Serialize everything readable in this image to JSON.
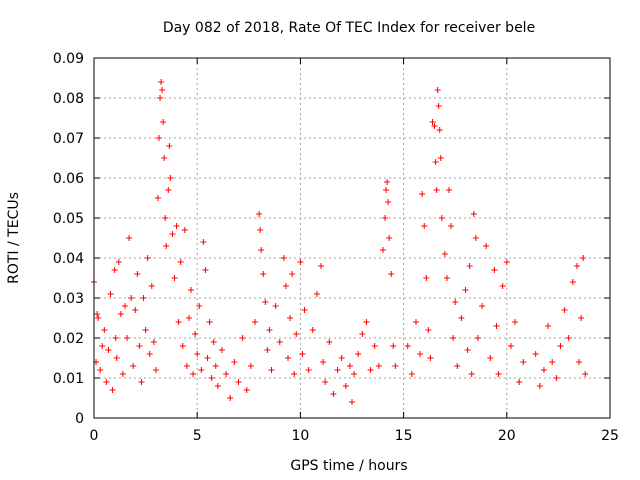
{
  "chart_data": {
    "type": "scatter",
    "title": "Day 082 of 2018, Rate Of TEC Index for receiver bele",
    "xlabel": "GPS time / hours",
    "ylabel": "ROTI / TECUs",
    "xlim": [
      0,
      25
    ],
    "ylim": [
      0,
      0.09
    ],
    "x_ticks": [
      0,
      5,
      10,
      15,
      20,
      25
    ],
    "x_tick_labels": [
      "0",
      "5",
      "10",
      "15",
      "20",
      "25"
    ],
    "y_ticks": [
      0,
      0.01,
      0.02,
      0.03,
      0.04,
      0.05,
      0.06,
      0.07,
      0.08,
      0.09
    ],
    "y_tick_labels": [
      "0",
      "0.01",
      "0.02",
      "0.03",
      "0.04",
      "0.05",
      "0.06",
      "0.07",
      "0.08",
      "0.09"
    ],
    "grid": true,
    "marker": "+",
    "color": "#ff0000",
    "series": [
      {
        "name": "ROTI",
        "points": [
          [
            0.0,
            0.034
          ],
          [
            0.1,
            0.014
          ],
          [
            0.15,
            0.026
          ],
          [
            0.2,
            0.025
          ],
          [
            0.3,
            0.012
          ],
          [
            0.4,
            0.018
          ],
          [
            0.5,
            0.022
          ],
          [
            0.6,
            0.009
          ],
          [
            0.7,
            0.017
          ],
          [
            0.8,
            0.031
          ],
          [
            0.9,
            0.007
          ],
          [
            1.0,
            0.037
          ],
          [
            1.05,
            0.02
          ],
          [
            1.1,
            0.015
          ],
          [
            1.2,
            0.039
          ],
          [
            1.3,
            0.026
          ],
          [
            1.4,
            0.011
          ],
          [
            1.5,
            0.028
          ],
          [
            1.6,
            0.02
          ],
          [
            1.7,
            0.045
          ],
          [
            1.8,
            0.03
          ],
          [
            1.9,
            0.013
          ],
          [
            2.0,
            0.027
          ],
          [
            2.1,
            0.036
          ],
          [
            2.2,
            0.018
          ],
          [
            2.3,
            0.009
          ],
          [
            2.4,
            0.03
          ],
          [
            2.5,
            0.022
          ],
          [
            2.6,
            0.04
          ],
          [
            2.7,
            0.016
          ],
          [
            2.8,
            0.033
          ],
          [
            2.9,
            0.019
          ],
          [
            3.0,
            0.012
          ],
          [
            3.1,
            0.055
          ],
          [
            3.15,
            0.07
          ],
          [
            3.2,
            0.08
          ],
          [
            3.25,
            0.084
          ],
          [
            3.3,
            0.082
          ],
          [
            3.35,
            0.074
          ],
          [
            3.4,
            0.065
          ],
          [
            3.45,
            0.05
          ],
          [
            3.5,
            0.043
          ],
          [
            3.6,
            0.057
          ],
          [
            3.65,
            0.068
          ],
          [
            3.7,
            0.06
          ],
          [
            3.8,
            0.046
          ],
          [
            3.9,
            0.035
          ],
          [
            4.0,
            0.048
          ],
          [
            4.1,
            0.024
          ],
          [
            4.2,
            0.039
          ],
          [
            4.3,
            0.018
          ],
          [
            4.4,
            0.047
          ],
          [
            4.5,
            0.013
          ],
          [
            4.6,
            0.025
          ],
          [
            4.7,
            0.032
          ],
          [
            4.8,
            0.011
          ],
          [
            4.9,
            0.021
          ],
          [
            5.0,
            0.016
          ],
          [
            5.1,
            0.028
          ],
          [
            5.2,
            0.012
          ],
          [
            5.3,
            0.044
          ],
          [
            5.4,
            0.037
          ],
          [
            5.5,
            0.015
          ],
          [
            5.6,
            0.024
          ],
          [
            5.7,
            0.01
          ],
          [
            5.8,
            0.019
          ],
          [
            5.9,
            0.013
          ],
          [
            6.0,
            0.008
          ],
          [
            6.2,
            0.017
          ],
          [
            6.4,
            0.011
          ],
          [
            6.6,
            0.005
          ],
          [
            6.8,
            0.014
          ],
          [
            7.0,
            0.009
          ],
          [
            7.2,
            0.02
          ],
          [
            7.4,
            0.007
          ],
          [
            7.6,
            0.013
          ],
          [
            7.8,
            0.024
          ],
          [
            8.0,
            0.051
          ],
          [
            8.05,
            0.047
          ],
          [
            8.1,
            0.042
          ],
          [
            8.2,
            0.036
          ],
          [
            8.3,
            0.029
          ],
          [
            8.4,
            0.017
          ],
          [
            8.5,
            0.022
          ],
          [
            8.6,
            0.012
          ],
          [
            8.8,
            0.028
          ],
          [
            9.0,
            0.019
          ],
          [
            9.2,
            0.04
          ],
          [
            9.3,
            0.033
          ],
          [
            9.4,
            0.015
          ],
          [
            9.5,
            0.025
          ],
          [
            9.6,
            0.036
          ],
          [
            9.7,
            0.011
          ],
          [
            9.8,
            0.021
          ],
          [
            10.0,
            0.039
          ],
          [
            10.1,
            0.016
          ],
          [
            10.2,
            0.027
          ],
          [
            10.4,
            0.012
          ],
          [
            10.6,
            0.022
          ],
          [
            10.8,
            0.031
          ],
          [
            11.0,
            0.038
          ],
          [
            11.1,
            0.014
          ],
          [
            11.2,
            0.009
          ],
          [
            11.4,
            0.019
          ],
          [
            11.6,
            0.006
          ],
          [
            11.8,
            0.012
          ],
          [
            12.0,
            0.015
          ],
          [
            12.2,
            0.008
          ],
          [
            12.4,
            0.013
          ],
          [
            12.5,
            0.004
          ],
          [
            12.6,
            0.011
          ],
          [
            12.8,
            0.016
          ],
          [
            13.0,
            0.021
          ],
          [
            13.2,
            0.024
          ],
          [
            13.4,
            0.012
          ],
          [
            13.6,
            0.018
          ],
          [
            13.8,
            0.013
          ],
          [
            14.0,
            0.042
          ],
          [
            14.1,
            0.05
          ],
          [
            14.15,
            0.057
          ],
          [
            14.2,
            0.059
          ],
          [
            14.25,
            0.054
          ],
          [
            14.3,
            0.045
          ],
          [
            14.4,
            0.036
          ],
          [
            14.5,
            0.018
          ],
          [
            14.6,
            0.013
          ],
          [
            15.2,
            0.018
          ],
          [
            15.4,
            0.011
          ],
          [
            15.6,
            0.024
          ],
          [
            15.8,
            0.016
          ],
          [
            15.9,
            0.056
          ],
          [
            16.0,
            0.048
          ],
          [
            16.1,
            0.035
          ],
          [
            16.2,
            0.022
          ],
          [
            16.3,
            0.015
          ],
          [
            16.4,
            0.074
          ],
          [
            16.5,
            0.073
          ],
          [
            16.55,
            0.064
          ],
          [
            16.6,
            0.057
          ],
          [
            16.65,
            0.082
          ],
          [
            16.7,
            0.078
          ],
          [
            16.75,
            0.072
          ],
          [
            16.8,
            0.065
          ],
          [
            16.85,
            0.05
          ],
          [
            17.0,
            0.041
          ],
          [
            17.1,
            0.035
          ],
          [
            17.2,
            0.057
          ],
          [
            17.3,
            0.048
          ],
          [
            17.4,
            0.02
          ],
          [
            17.5,
            0.029
          ],
          [
            17.6,
            0.013
          ],
          [
            17.8,
            0.025
          ],
          [
            18.0,
            0.032
          ],
          [
            18.1,
            0.017
          ],
          [
            18.2,
            0.038
          ],
          [
            18.3,
            0.011
          ],
          [
            18.4,
            0.051
          ],
          [
            18.5,
            0.045
          ],
          [
            18.6,
            0.02
          ],
          [
            18.8,
            0.028
          ],
          [
            19.0,
            0.043
          ],
          [
            19.2,
            0.015
          ],
          [
            19.4,
            0.037
          ],
          [
            19.5,
            0.023
          ],
          [
            19.6,
            0.011
          ],
          [
            19.8,
            0.033
          ],
          [
            20.0,
            0.039
          ],
          [
            20.2,
            0.018
          ],
          [
            20.4,
            0.024
          ],
          [
            20.6,
            0.009
          ],
          [
            20.8,
            0.014
          ],
          [
            21.4,
            0.016
          ],
          [
            21.6,
            0.008
          ],
          [
            21.8,
            0.012
          ],
          [
            22.0,
            0.023
          ],
          [
            22.2,
            0.014
          ],
          [
            22.4,
            0.01
          ],
          [
            22.6,
            0.018
          ],
          [
            22.8,
            0.027
          ],
          [
            23.0,
            0.02
          ],
          [
            23.2,
            0.034
          ],
          [
            23.4,
            0.038
          ],
          [
            23.5,
            0.014
          ],
          [
            23.6,
            0.025
          ],
          [
            23.7,
            0.04
          ],
          [
            23.8,
            0.011
          ]
        ]
      }
    ]
  }
}
